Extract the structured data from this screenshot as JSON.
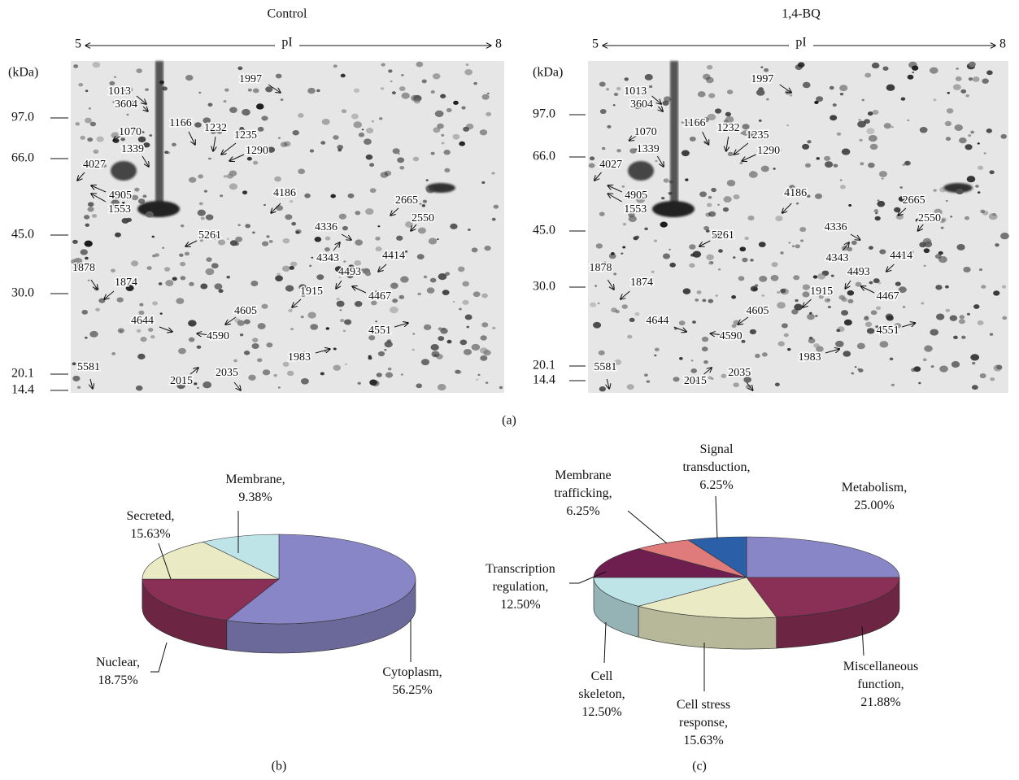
{
  "figure_labels": {
    "a": "(a)",
    "b": "(b)",
    "c": "(c)"
  },
  "gels": [
    {
      "title": "Control",
      "pi_range": [
        5,
        8
      ],
      "pi_axis": "pI",
      "mw_unit": "(kDa)",
      "mw_ticks": [
        "97.0",
        "66.0",
        "45.0",
        "30.0",
        "20.1",
        "14.4"
      ],
      "spots": [
        "1997",
        "1013",
        "3604",
        "1070",
        "1166",
        "1232",
        "1235",
        "1290",
        "1339",
        "4027",
        "4905",
        "1553",
        "4186",
        "2665",
        "2550",
        "5261",
        "4336",
        "4343",
        "4414",
        "4493",
        "4467",
        "1915",
        "1878",
        "1874",
        "4605",
        "4644",
        "4590",
        "4551",
        "1983",
        "2015",
        "2035",
        "5581"
      ]
    },
    {
      "title": "1,4-BQ",
      "pi_range": [
        5,
        8
      ],
      "pi_axis": "pI",
      "mw_unit": "(kDa)",
      "mw_ticks": [
        "97.0",
        "66.0",
        "45.0",
        "30.0",
        "20.1",
        "14.4"
      ],
      "spots": [
        "1997",
        "1013",
        "3604",
        "1070",
        "1166",
        "1232",
        "1235",
        "1290",
        "1339",
        "4027",
        "4905",
        "1553",
        "4186",
        "2665",
        "2550",
        "5261",
        "4336",
        "4343",
        "4414",
        "4493",
        "4467",
        "1915",
        "1878",
        "1874",
        "4605",
        "4644",
        "4590",
        "4551",
        "1983",
        "2015",
        "2035",
        "5581"
      ]
    }
  ],
  "chart_data": [
    {
      "type": "pie",
      "categories": [
        "Cytoplasm,",
        "Nuclear,",
        "Secreted,",
        "Membrane,"
      ],
      "values": [
        56.25,
        18.75,
        15.63,
        9.38
      ],
      "value_labels": [
        "56.25%",
        "18.75%",
        "15.63%",
        "9.38%"
      ],
      "colors": [
        "#8886c6",
        "#8a2f55",
        "#eaeac4",
        "#bfe4e8"
      ]
    },
    {
      "type": "pie",
      "categories": [
        "Metabolism,",
        "Miscellaneous function,",
        "Cell stress response,",
        "Cell skeleton,",
        "Transcription regulation,",
        "Membrane trafficking,",
        "Signal transduction,"
      ],
      "values": [
        25.0,
        21.88,
        15.63,
        12.5,
        12.5,
        6.25,
        6.25
      ],
      "value_labels": [
        "25.00%",
        "21.88%",
        "15.63%",
        "12.50%",
        "12.50%",
        "6.25%",
        "6.25%"
      ],
      "colors": [
        "#8886c6",
        "#8a2f55",
        "#eaeac4",
        "#bfe4e8",
        "#6e1f50",
        "#e07b7b",
        "#2b5fa8"
      ]
    }
  ]
}
